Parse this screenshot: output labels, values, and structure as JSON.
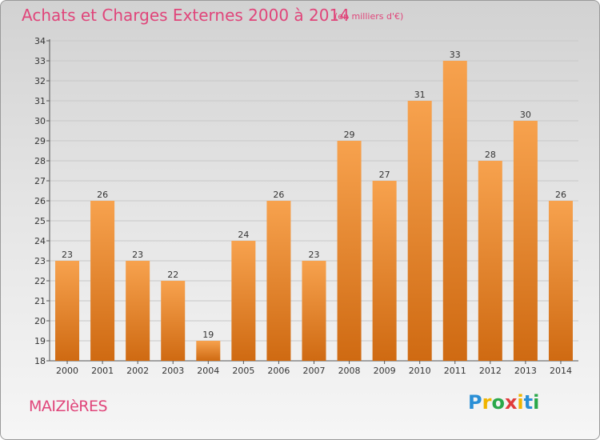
{
  "chart_data": {
    "type": "bar",
    "title": "Achats et Charges Externes 2000 à 2014",
    "subtitle": "(en milliers d'€)",
    "categories": [
      "2000",
      "2001",
      "2002",
      "2003",
      "2004",
      "2005",
      "2006",
      "2007",
      "2008",
      "2009",
      "2010",
      "2011",
      "2012",
      "2013",
      "2014"
    ],
    "values": [
      23,
      26,
      23,
      22,
      19,
      24,
      26,
      23,
      29,
      27,
      31,
      33,
      28,
      30,
      26
    ],
    "ylim": [
      18,
      34
    ],
    "yticks": [
      18,
      19,
      20,
      21,
      22,
      23,
      24,
      25,
      26,
      27,
      28,
      29,
      30,
      31,
      32,
      33,
      34
    ],
    "xlabel": "",
    "ylabel": "",
    "grid": true,
    "bar_color": "#f08a2e"
  },
  "footer": {
    "commune": "MAIZIèRES",
    "logo_letters": [
      "P",
      "r",
      "o",
      "x",
      "i",
      "t",
      "i"
    ],
    "logo_colors": [
      "#2a8fd6",
      "#f0b400",
      "#2aa84a",
      "#e03b3b",
      "#f0b400",
      "#2a8fd6",
      "#2aa84a"
    ]
  }
}
